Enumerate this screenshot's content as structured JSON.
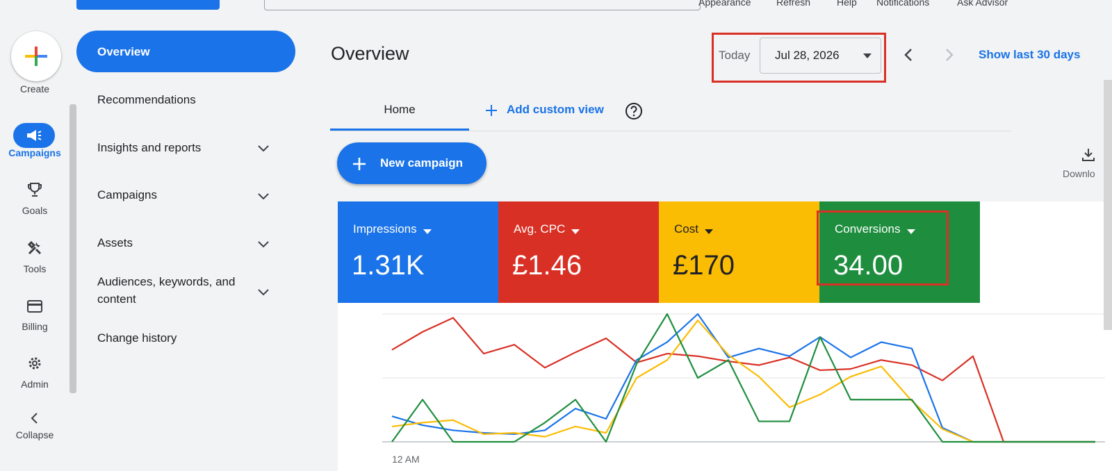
{
  "header": {
    "links": [
      "Appearance",
      "Refresh",
      "Help",
      "Notifications",
      "Ask Advisor"
    ]
  },
  "rail": {
    "create": "Create",
    "items": [
      {
        "label": "Campaigns",
        "icon": "megaphone-icon",
        "active": true
      },
      {
        "label": "Goals",
        "icon": "trophy-icon"
      },
      {
        "label": "Tools",
        "icon": "tools-icon"
      },
      {
        "label": "Billing",
        "icon": "credit-card-icon"
      },
      {
        "label": "Admin",
        "icon": "gear-icon"
      },
      {
        "label": "Collapse",
        "icon": "chevron-left-icon"
      }
    ]
  },
  "nav": {
    "items": [
      {
        "label": "Overview",
        "active": true
      },
      {
        "label": "Recommendations"
      },
      {
        "label": "Insights and reports",
        "expandable": true
      },
      {
        "label": "Campaigns",
        "expandable": true
      },
      {
        "label": "Assets",
        "expandable": true
      },
      {
        "label": "Audiences, keywords, and content",
        "expandable": true
      },
      {
        "label": "Change history"
      }
    ]
  },
  "main": {
    "title": "Overview",
    "date_prefix": "Today",
    "date_value": "Jul 28, 2026",
    "show_last": "Show last 30 days",
    "tabs": {
      "home": "Home",
      "add_view": "Add custom view"
    },
    "new_campaign": "New campaign",
    "download": "Downlo"
  },
  "metrics": [
    {
      "label": "Impressions",
      "value": "1.31K",
      "color": "#1a73e8",
      "text_color": "#ffffff"
    },
    {
      "label": "Avg. CPC",
      "value": "£1.46",
      "color": "#d93025",
      "text_color": "#ffffff"
    },
    {
      "label": "Cost",
      "value": "£170",
      "color": "#fbbc04",
      "text_color": "#202124"
    },
    {
      "label": "Conversions",
      "value": "34.00",
      "color": "#1e8e3e",
      "text_color": "#ffffff"
    }
  ],
  "chart_data": {
    "type": "line",
    "x_tick_labels": [
      "12 AM"
    ],
    "x": [
      0,
      1,
      2,
      3,
      4,
      5,
      6,
      7,
      8,
      9,
      10,
      11,
      12,
      13,
      14,
      15,
      16,
      17,
      18,
      19,
      20,
      21,
      22,
      23
    ],
    "ylim": [
      0,
      100
    ],
    "grid": true,
    "series": [
      {
        "color": "#d93025",
        "values": [
          72,
          86,
          97,
          69,
          76,
          58,
          70,
          81,
          62,
          69,
          67,
          63,
          60,
          66,
          56,
          57,
          64,
          60,
          48,
          67,
          0,
          0,
          0,
          0
        ]
      },
      {
        "color": "#1a73e8",
        "values": [
          20,
          13,
          9,
          7,
          6,
          9,
          26,
          18,
          64,
          78,
          100,
          66,
          73,
          67,
          82,
          66,
          78,
          73,
          11,
          0,
          0,
          0,
          0,
          0
        ]
      },
      {
        "color": "#fbbc04",
        "values": [
          12,
          15,
          17,
          6,
          7,
          4,
          12,
          7,
          50,
          64,
          95,
          68,
          51,
          27,
          37,
          51,
          59,
          32,
          10,
          0,
          0,
          0,
          0,
          0
        ]
      },
      {
        "color": "#1e8e3e",
        "values": [
          0,
          33,
          0,
          0,
          0,
          15,
          33,
          0,
          61,
          100,
          50,
          64,
          16,
          16,
          82,
          33,
          33,
          33,
          0,
          0,
          0,
          0,
          0,
          0
        ]
      }
    ]
  }
}
